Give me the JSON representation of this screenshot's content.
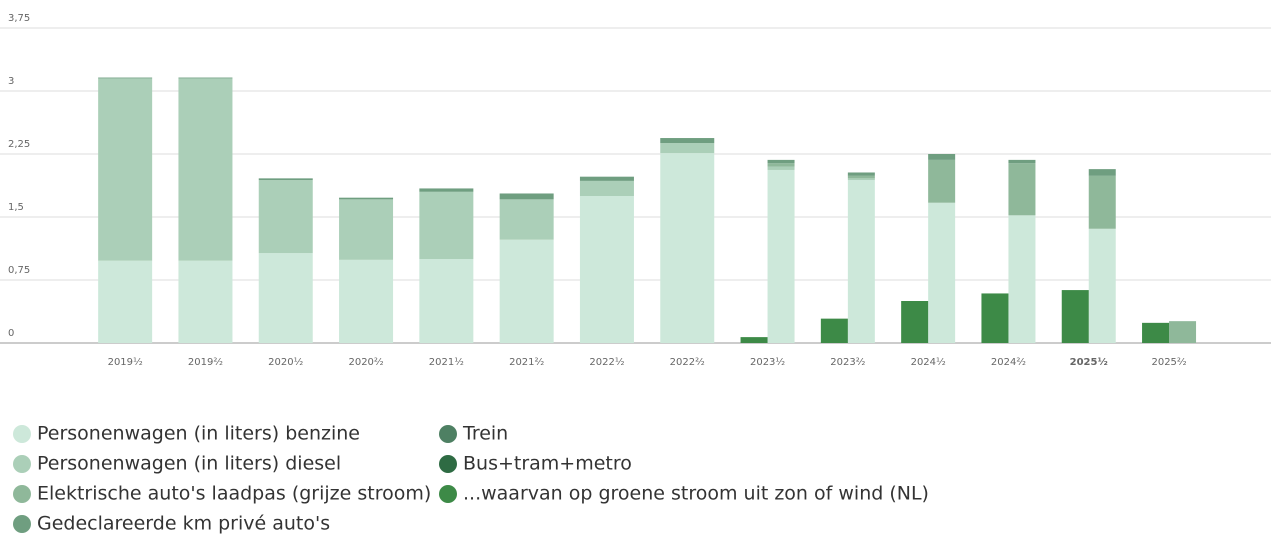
{
  "chart_data": {
    "type": "stacked_bar",
    "categories": [
      "2019¹⁄₂",
      "2019²⁄₂",
      "2020¹⁄₂",
      "2020²⁄₂",
      "2021¹⁄₂",
      "2021²⁄₂",
      "2022¹⁄₂",
      "2022²⁄₂",
      "2023¹⁄₂",
      "2023²⁄₂",
      "2024¹⁄₂",
      "2024²⁄₂",
      "2025¹⁄₂",
      "2025²⁄₂"
    ],
    "highlight_category": 12,
    "ylim": [
      0,
      3.75
    ],
    "yticks": [
      0,
      {
        "value": 0.75,
        "label": "0,75"
      },
      {
        "value": 1.5,
        "label": "1,5"
      },
      {
        "value": 2.25,
        "label": "2,25"
      },
      3,
      {
        "value": 3.75,
        "label": "3,75"
      }
    ],
    "grid": true,
    "series": [
      {
        "name": "Personenwagen (in liters) benzine",
        "color": "#cde8da",
        "values": [
          0.98,
          0.98,
          1.07,
          0.99,
          1.0,
          1.23,
          1.75,
          2.26,
          2.06,
          1.94,
          1.67,
          1.52,
          1.36,
          0
        ]
      },
      {
        "name": "Personenwagen (in liters) diesel",
        "color": "#abcfb8",
        "values": [
          2.17,
          2.17,
          0.87,
          0.72,
          0.8,
          0.48,
          0.18,
          0.12,
          0.04,
          0.02,
          0,
          0,
          0,
          0
        ]
      },
      {
        "name": "Elektrische auto's laadpas (grijze stroom)",
        "color": "#8fb89a",
        "values": [
          0,
          0,
          0,
          0,
          0,
          0,
          0,
          0,
          0.04,
          0.03,
          0.51,
          0.62,
          0.63,
          0.26
        ]
      },
      {
        "name": "Gedeclareerde km privé auto's",
        "color": "#6f9e80",
        "values": [
          0.01,
          0.01,
          0.02,
          0.02,
          0.04,
          0.07,
          0.05,
          0.06,
          0.04,
          0.04,
          0.07,
          0.04,
          0.08,
          0
        ]
      },
      {
        "name": "Trein",
        "color": "#4e8063",
        "values": [
          0,
          0,
          0,
          0,
          0,
          0,
          0,
          0,
          0,
          0,
          0,
          0,
          0,
          0
        ]
      },
      {
        "name": "Bus+tram+metro",
        "color": "#2e6b43",
        "values": [
          0,
          0,
          0,
          0,
          0,
          0,
          0,
          0,
          0,
          0,
          0,
          0,
          0,
          0
        ]
      },
      {
        "name": "...waarvan op groene stroom uit zon of wind (NL)",
        "color": "#3d8a47",
        "separate": true,
        "values": [
          null,
          null,
          null,
          null,
          null,
          null,
          null,
          null,
          0.07,
          0.29,
          0.5,
          0.59,
          0.63,
          0.24
        ]
      }
    ]
  }
}
